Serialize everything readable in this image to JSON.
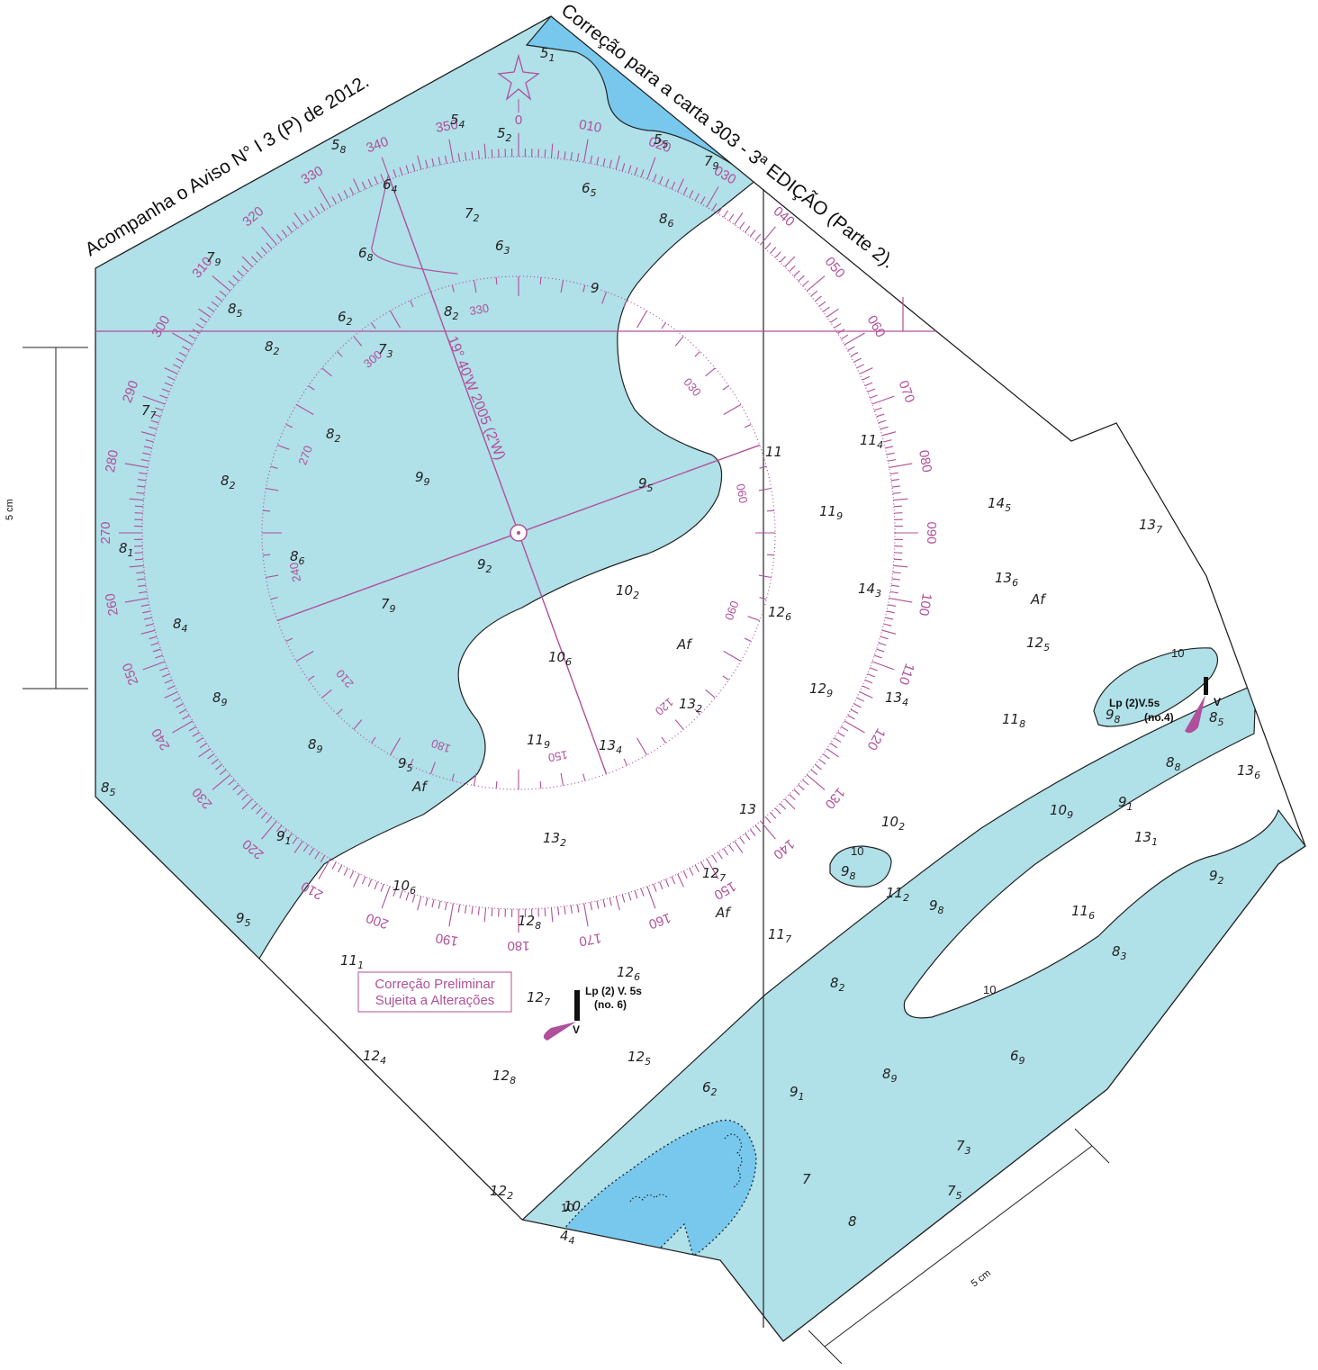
{
  "titles": {
    "left": "Acompanha o Aviso N° I 3 (P) de 2012.",
    "right": "Correção para a carta 303 - 3ª EDIÇÃO (Parte 2)."
  },
  "magnetic_note": "19° 40'W 2005 (2'W)",
  "preliminary_box": {
    "line1": "Correção Preliminar",
    "line2": "Sujeita a Alterações"
  },
  "lights": [
    {
      "line1": "Lp (2)V.5s",
      "line2": "(no.4)",
      "color_code": "V"
    },
    {
      "line1": "Lp (2) V. 5s",
      "line2": "(no. 6)",
      "color_code": "V"
    }
  ],
  "scale_bars": {
    "left": "5 cm",
    "bottom": "5 cm"
  },
  "contour_labels": [
    "10",
    "10",
    "10",
    "10"
  ],
  "outer_rose_labels": [
    "0",
    "010",
    "020",
    "030",
    "040",
    "050",
    "060",
    "070",
    "080",
    "090",
    "100",
    "110",
    "120",
    "130",
    "140",
    "150",
    "160",
    "170",
    "180",
    "190",
    "200",
    "210",
    "220",
    "230",
    "240",
    "250",
    "260",
    "270",
    "280",
    "290",
    "300",
    "310",
    "320",
    "330",
    "340",
    "350"
  ],
  "inner_rose_labels": [
    "030",
    "060",
    "090",
    "120",
    "150",
    "180",
    "210",
    "240",
    "270",
    "300",
    "330"
  ],
  "soundings": [
    {
      "m": "5",
      "s": "1"
    },
    {
      "m": "5",
      "s": "4"
    },
    {
      "m": "5",
      "s": "2"
    },
    {
      "m": "5",
      "s": "5"
    },
    {
      "m": "5",
      "s": "8"
    },
    {
      "m": "7",
      "s": "9"
    },
    {
      "m": "6",
      "s": "4"
    },
    {
      "m": "6",
      "s": "5"
    },
    {
      "m": "7",
      "s": "2"
    },
    {
      "m": "8",
      "s": "6"
    },
    {
      "m": "6",
      "s": "3"
    },
    {
      "m": "6",
      "s": "8"
    },
    {
      "m": "7",
      "s": "9"
    },
    {
      "m": "8",
      "s": "5"
    },
    {
      "m": "9",
      "s": ""
    },
    {
      "m": "8",
      "s": "2"
    },
    {
      "m": "6",
      "s": "2"
    },
    {
      "m": "8",
      "s": "2"
    },
    {
      "m": "7",
      "s": "3"
    },
    {
      "m": "7",
      "s": "7"
    },
    {
      "m": "8",
      "s": "2"
    },
    {
      "m": "9",
      "s": "9"
    },
    {
      "m": "9",
      "s": "5"
    },
    {
      "m": "8",
      "s": "2"
    },
    {
      "m": "8",
      "s": "1"
    },
    {
      "m": "8",
      "s": "6"
    },
    {
      "m": "9",
      "s": "2"
    },
    {
      "m": "10",
      "s": "2"
    },
    {
      "m": "7",
      "s": "9"
    },
    {
      "m": "8",
      "s": "4"
    },
    {
      "m": "Af",
      "s": ""
    },
    {
      "m": "10",
      "s": "6"
    },
    {
      "m": "8",
      "s": "9"
    },
    {
      "m": "13",
      "s": "2"
    },
    {
      "m": "8",
      "s": "9"
    },
    {
      "m": "11",
      "s": "9"
    },
    {
      "m": "13",
      "s": "4"
    },
    {
      "m": "9",
      "s": "5"
    },
    {
      "m": "Af",
      "s": ""
    },
    {
      "m": "8",
      "s": "5"
    },
    {
      "m": "13",
      "s": ""
    },
    {
      "m": "13",
      "s": "2"
    },
    {
      "m": "9",
      "s": "1"
    },
    {
      "m": "10",
      "s": "6"
    },
    {
      "m": "12",
      "s": "7"
    },
    {
      "m": "9",
      "s": "5"
    },
    {
      "m": "12",
      "s": "8"
    },
    {
      "m": "Af",
      "s": ""
    },
    {
      "m": "11",
      "s": "7"
    },
    {
      "m": "11",
      "s": "1"
    },
    {
      "m": "12",
      "s": "6"
    },
    {
      "m": "12",
      "s": "7"
    },
    {
      "m": "12",
      "s": "4"
    },
    {
      "m": "12",
      "s": "5"
    },
    {
      "m": "12",
      "s": "8"
    },
    {
      "m": "6",
      "s": "2"
    },
    {
      "m": "12",
      "s": "2"
    },
    {
      "m": "10",
      "s": ""
    },
    {
      "m": "4",
      "s": "4"
    },
    {
      "m": "11",
      "s": "4"
    },
    {
      "m": "11",
      "s": ""
    },
    {
      "m": "11",
      "s": "9"
    },
    {
      "m": "14",
      "s": "5"
    },
    {
      "m": "13",
      "s": "7"
    },
    {
      "m": "13",
      "s": "6"
    },
    {
      "m": "Af",
      "s": ""
    },
    {
      "m": "14",
      "s": "3"
    },
    {
      "m": "12",
      "s": "6"
    },
    {
      "m": "12",
      "s": "5"
    },
    {
      "m": "12",
      "s": "9"
    },
    {
      "m": "13",
      "s": "4"
    },
    {
      "m": "11",
      "s": "8"
    },
    {
      "m": "9",
      "s": "8"
    },
    {
      "m": "8",
      "s": "5"
    },
    {
      "m": "8",
      "s": "8"
    },
    {
      "m": "13",
      "s": "6"
    },
    {
      "m": "10",
      "s": "9"
    },
    {
      "m": "9",
      "s": "1"
    },
    {
      "m": "13",
      "s": "1"
    },
    {
      "m": "10",
      "s": "2"
    },
    {
      "m": "9",
      "s": "8"
    },
    {
      "m": "11",
      "s": "2"
    },
    {
      "m": "9",
      "s": "8"
    },
    {
      "m": "11",
      "s": "6"
    },
    {
      "m": "9",
      "s": "2"
    },
    {
      "m": "8",
      "s": "3"
    },
    {
      "m": "8",
      "s": "2"
    },
    {
      "m": "6",
      "s": "9"
    },
    {
      "m": "9",
      "s": "1"
    },
    {
      "m": "8",
      "s": "9"
    },
    {
      "m": "7",
      "s": "3"
    },
    {
      "m": "7",
      "s": ""
    },
    {
      "m": "7",
      "s": "5"
    },
    {
      "m": "8",
      "s": ""
    }
  ],
  "colors": {
    "shallow_water": "#b0e0e8",
    "very_shallow_water": "#78c8ee",
    "magenta": "#b0509a",
    "outline": "#222222"
  }
}
